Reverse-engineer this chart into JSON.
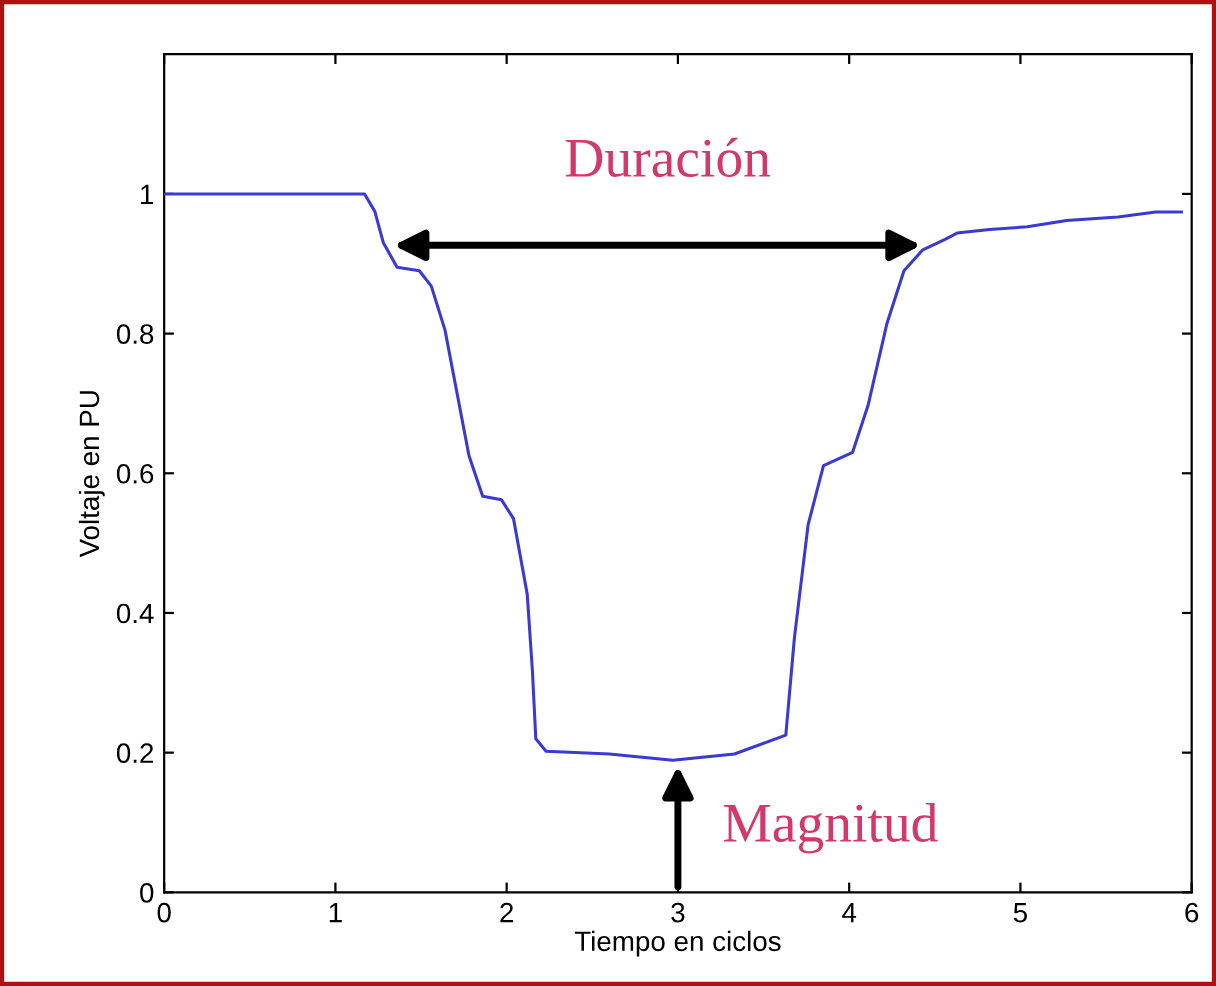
{
  "chart_data": {
    "type": "line",
    "xlabel": "Tiempo en ciclos",
    "ylabel": "Voltaje en PU",
    "xlim": [
      0,
      6
    ],
    "ylim": [
      0,
      1.2
    ],
    "xticks": [
      0,
      1,
      2,
      3,
      4,
      5,
      6
    ],
    "yticks": [
      0,
      0.2,
      0.4,
      0.6,
      0.8,
      1
    ],
    "grid": false,
    "legend": false,
    "annotations": [
      "Duración",
      {
        "text": "Magnitud",
        "x": 3,
        "y": 0.189
      }
    ],
    "series": [
      {
        "color": "#3a3ad0",
        "x": [
          0,
          1.17,
          1.23,
          1.28,
          1.36,
          1.49,
          1.56,
          1.64,
          1.71,
          1.78,
          1.86,
          1.97,
          2.04,
          2.12,
          2.15,
          2.17,
          2.23,
          2.6,
          2.97,
          3.33,
          3.63,
          3.68,
          3.76,
          3.85,
          4.02,
          4.11,
          4.22,
          4.32,
          4.43,
          4.56,
          4.63,
          4.82,
          5.04,
          5.27,
          5.57,
          5.79,
          5.94
        ],
        "values": [
          1.0,
          1.0,
          0.975,
          0.93,
          0.895,
          0.89,
          0.868,
          0.805,
          0.715,
          0.625,
          0.567,
          0.562,
          0.535,
          0.427,
          0.319,
          0.22,
          0.202,
          0.198,
          0.189,
          0.198,
          0.225,
          0.364,
          0.526,
          0.611,
          0.63,
          0.697,
          0.814,
          0.89,
          0.92,
          0.935,
          0.944,
          0.949,
          0.953,
          0.962,
          0.967,
          0.974,
          0.974
        ]
      }
    ]
  }
}
